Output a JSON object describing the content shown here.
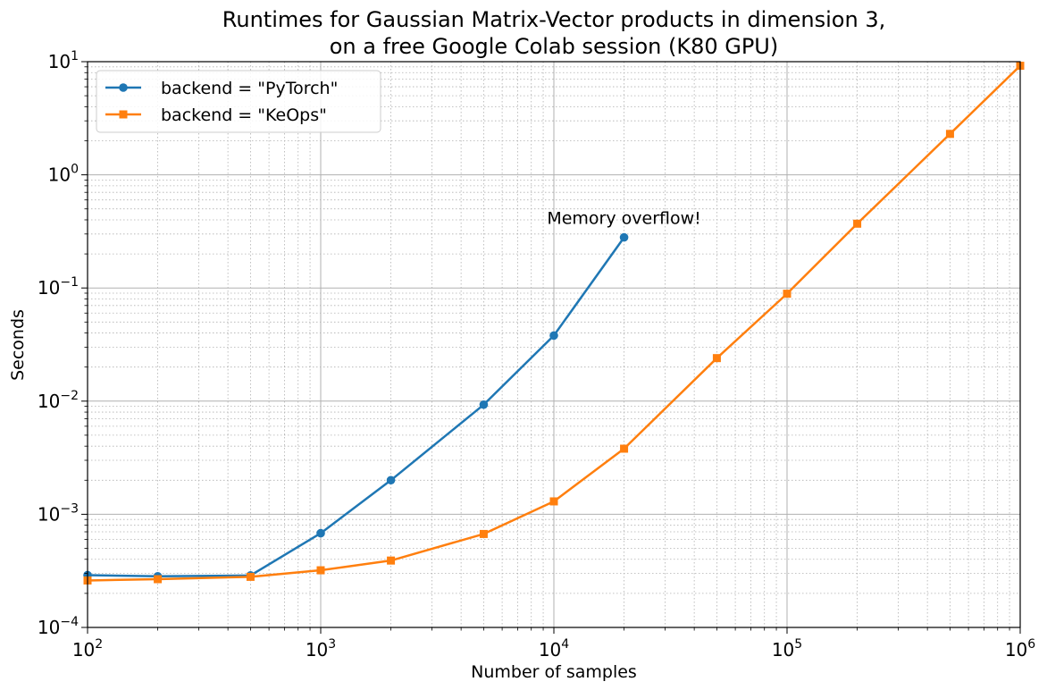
{
  "chart_data": {
    "type": "line",
    "title": [
      "Runtimes for Gaussian Matrix-Vector products in dimension 3,",
      "on a free Google Colab session (K80 GPU)"
    ],
    "xlabel": "Number of samples",
    "ylabel": "Seconds",
    "xscale": "log",
    "yscale": "log",
    "xlim": [
      100,
      1000000
    ],
    "ylim": [
      0.0001,
      10
    ],
    "grid": true,
    "legend_position": "top-left",
    "x_ticks": [
      {
        "value": 100,
        "mantissa": "10",
        "exponent": "2"
      },
      {
        "value": 1000,
        "mantissa": "10",
        "exponent": "3"
      },
      {
        "value": 10000,
        "mantissa": "10",
        "exponent": "4"
      },
      {
        "value": 100000,
        "mantissa": "10",
        "exponent": "5"
      },
      {
        "value": 1000000,
        "mantissa": "10",
        "exponent": "6"
      }
    ],
    "y_ticks": [
      {
        "value": 0.0001,
        "mantissa": "10",
        "exponent": "−4"
      },
      {
        "value": 0.001,
        "mantissa": "10",
        "exponent": "−3"
      },
      {
        "value": 0.01,
        "mantissa": "10",
        "exponent": "−2"
      },
      {
        "value": 0.1,
        "mantissa": "10",
        "exponent": "−1"
      },
      {
        "value": 1,
        "mantissa": "10",
        "exponent": "0"
      },
      {
        "value": 10,
        "mantissa": "10",
        "exponent": "1"
      }
    ],
    "series": [
      {
        "name": "backend = \"PyTorch\"",
        "color": "#1f77b4",
        "marker": "circle",
        "x": [
          100,
          200,
          500,
          1000,
          2000,
          5000,
          10000,
          20000
        ],
        "y": [
          0.00029,
          0.000283,
          0.000288,
          0.00068,
          0.002,
          0.0093,
          0.038,
          0.28
        ]
      },
      {
        "name": "backend = \"KeOps\"",
        "color": "#ff7f0e",
        "marker": "square",
        "x": [
          100,
          200,
          500,
          1000,
          2000,
          5000,
          10000,
          20000,
          50000,
          100000,
          200000,
          500000,
          1000000
        ],
        "y": [
          0.00026,
          0.000267,
          0.00028,
          0.00032,
          0.00039,
          0.00067,
          0.0013,
          0.0038,
          0.024,
          0.089,
          0.37,
          2.3,
          9.2
        ]
      }
    ],
    "annotations": [
      {
        "text": "Memory overflow!",
        "x": 20000,
        "y": 0.28
      }
    ]
  }
}
